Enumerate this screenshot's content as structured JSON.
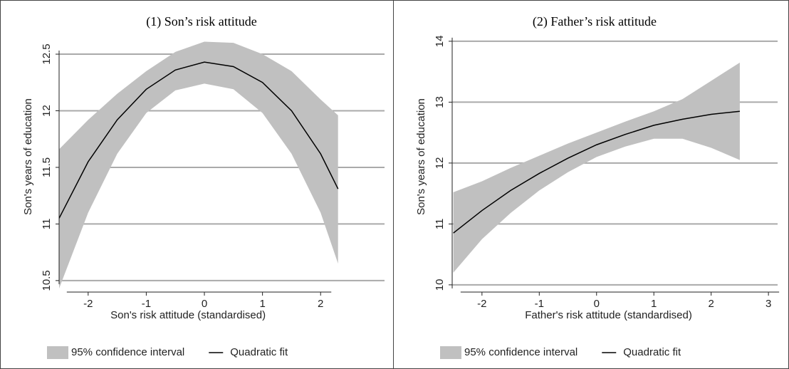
{
  "chart_data": [
    {
      "type": "line",
      "title": "(1) Son’s risk attitude",
      "xlabel": "Son's risk attitude (standardised)",
      "ylabel": "Son's years of education",
      "x": [
        -2.5,
        -2,
        -1.5,
        -1,
        -0.5,
        0,
        0.5,
        1,
        1.5,
        2,
        2.3
      ],
      "series": [
        {
          "name": "95% confidence interval",
          "color": "#c0c0c0",
          "lower": [
            10.43,
            11.1,
            11.62,
            11.98,
            12.18,
            12.24,
            12.19,
            11.98,
            11.62,
            11.1,
            10.65
          ],
          "upper": [
            11.66,
            11.92,
            12.15,
            12.35,
            12.52,
            12.61,
            12.6,
            12.5,
            12.35,
            12.1,
            11.96
          ]
        },
        {
          "name": "Quadratic fit",
          "color": "#000000",
          "values": [
            11.05,
            11.55,
            11.92,
            12.19,
            12.36,
            12.43,
            12.39,
            12.25,
            12.0,
            11.62,
            11.31
          ]
        }
      ],
      "xlim": [
        -2.5,
        3.1
      ],
      "xticks": [
        -2,
        -1,
        0,
        1,
        2
      ],
      "ylim": [
        10.43,
        12.84
      ],
      "yticks": [
        10.5,
        11,
        11.5,
        12,
        12.5
      ],
      "grid": true
    },
    {
      "type": "line",
      "title": "(2) Father’s risk attitude",
      "xlabel": "Father's risk attitude (standardised)",
      "ylabel": "Son's years of education",
      "x": [
        -2.5,
        -2,
        -1.5,
        -1,
        -0.5,
        0,
        0.5,
        1,
        1.5,
        2,
        2.5
      ],
      "series": [
        {
          "name": "95% confidence interval",
          "color": "#c0c0c0",
          "lower": [
            10.2,
            10.75,
            11.18,
            11.55,
            11.85,
            12.1,
            12.27,
            12.4,
            12.4,
            12.25,
            12.05
          ],
          "upper": [
            11.52,
            11.7,
            11.92,
            12.12,
            12.32,
            12.5,
            12.68,
            12.85,
            13.05,
            13.35,
            13.65
          ]
        },
        {
          "name": "Quadratic fit",
          "color": "#000000",
          "values": [
            10.85,
            11.22,
            11.55,
            11.83,
            12.08,
            12.3,
            12.47,
            12.62,
            12.72,
            12.8,
            12.85
          ]
        }
      ],
      "xlim": [
        -2.52,
        3.16
      ],
      "xticks": [
        -2,
        -1,
        0,
        1,
        2,
        3
      ],
      "ylim": [
        9.94,
        14.42
      ],
      "yticks": [
        10,
        11,
        12,
        13,
        14
      ],
      "grid": true
    }
  ]
}
